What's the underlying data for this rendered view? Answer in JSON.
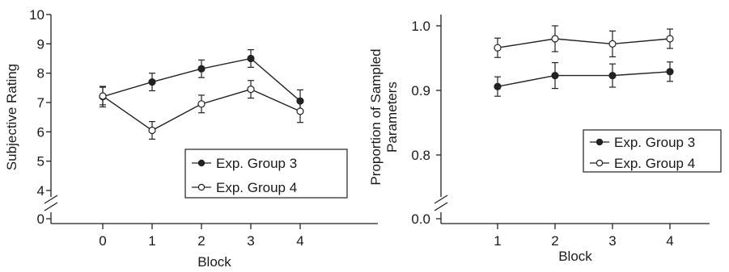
{
  "chart_data": [
    {
      "type": "line",
      "xlabel": "Block",
      "ylabel": "Subjective Rating",
      "x": [
        0,
        1,
        2,
        3,
        4
      ],
      "xticks": [
        0,
        1,
        2,
        3,
        4
      ],
      "xlim": [
        -1,
        5.1
      ],
      "yticks": [
        0,
        4,
        5,
        6,
        7,
        8,
        9,
        10
      ],
      "axis_break": "between 0 and 4",
      "ylim": [
        0,
        10
      ],
      "grid": false,
      "legend_position": "lower-right",
      "series": [
        {
          "name": "Exp. Group 3",
          "marker": "filled-circle",
          "values": [
            7.2,
            7.7,
            8.15,
            8.5,
            7.05
          ],
          "errors": [
            0.35,
            0.3,
            0.3,
            0.3,
            0.38
          ]
        },
        {
          "name": "Exp. Group 4",
          "marker": "open-circle",
          "values": [
            7.22,
            6.05,
            6.95,
            7.45,
            6.7
          ],
          "errors": [
            0.3,
            0.3,
            0.3,
            0.3,
            0.38
          ]
        }
      ]
    },
    {
      "type": "line",
      "xlabel": "Block",
      "ylabel": "Proportion of Sampled Parameters",
      "ylabel_lines": [
        "Proportion of Sampled",
        "Parameters"
      ],
      "x": [
        1,
        2,
        3,
        4
      ],
      "xticks": [
        1,
        2,
        3,
        4
      ],
      "xlim": [
        0.1,
        4.95
      ],
      "yticks": [
        0.0,
        0.8,
        0.9,
        1.0
      ],
      "ytick_labels": [
        "0.0",
        "0.8",
        "0.9",
        "1.0"
      ],
      "axis_break": "between 0.0 and 0.8",
      "ylim": [
        0.0,
        1.0
      ],
      "grid": false,
      "legend_position": "lower-right",
      "series": [
        {
          "name": "Exp. Group 3",
          "marker": "filled-circle",
          "values": [
            0.906,
            0.923,
            0.923,
            0.929
          ],
          "errors": [
            0.015,
            0.02,
            0.018,
            0.015
          ]
        },
        {
          "name": "Exp. Group 4",
          "marker": "open-circle",
          "values": [
            0.966,
            0.98,
            0.972,
            0.98
          ],
          "errors": [
            0.015,
            0.02,
            0.02,
            0.015
          ]
        }
      ]
    }
  ]
}
